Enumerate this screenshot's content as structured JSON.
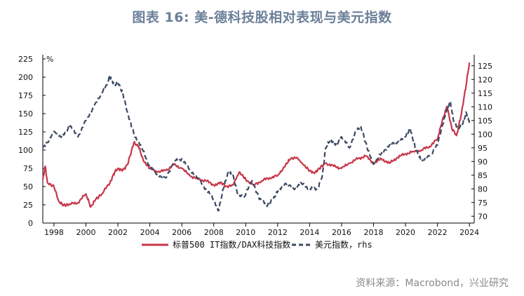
{
  "title": "图表 16: 美-德科技股相对表现与美元指数",
  "source": "资料来源：Macrobond，兴业研究",
  "chart_data": {
    "type": "line",
    "unit_label": "%",
    "x_range": [
      1997.3,
      2024.3
    ],
    "x_ticks": [
      "1998",
      "2000",
      "2002",
      "2004",
      "2006",
      "2008",
      "2010",
      "2012",
      "2014",
      "2016",
      "2018",
      "2020",
      "2022",
      "2024"
    ],
    "y_left": {
      "ticks": [
        "225",
        "200",
        "175",
        "150",
        "125",
        "100",
        "75",
        "50",
        "25",
        "0"
      ],
      "range": [
        0,
        225
      ]
    },
    "y_right": {
      "ticks": [
        "125",
        "120",
        "115",
        "110",
        "105",
        "100",
        "95",
        "90",
        "85",
        "80",
        "75",
        "70"
      ],
      "range": [
        67.5,
        127.5
      ]
    },
    "legend": {
      "position": "bottom-center"
    },
    "series": [
      {
        "name": "标普500 IT指数/DAX科技指数",
        "axis": "left",
        "color": "#c8374a",
        "style": "solid",
        "x": [
          1997.3,
          1997.45,
          1997.6,
          1998.0,
          1998.3,
          1998.6,
          1999.0,
          1999.5,
          2000.0,
          2000.3,
          2000.6,
          2001.0,
          2001.5,
          2001.8,
          2002.0,
          2002.3,
          2002.6,
          2003.0,
          2003.3,
          2003.6,
          2004.0,
          2004.5,
          2005.0,
          2005.5,
          2006.0,
          2006.5,
          2007.0,
          2007.5,
          2008.0,
          2008.5,
          2008.8,
          2009.2,
          2009.6,
          2010.0,
          2010.5,
          2011.0,
          2011.5,
          2012.0,
          2012.5,
          2012.8,
          2013.2,
          2013.6,
          2014.0,
          2014.3,
          2014.6,
          2015.0,
          2015.5,
          2016.0,
          2016.5,
          2017.0,
          2017.5,
          2018.0,
          2018.5,
          2019.0,
          2019.5,
          2020.0,
          2020.5,
          2021.0,
          2021.5,
          2022.0,
          2022.3,
          2022.6,
          2022.9,
          2023.2,
          2023.5,
          2023.8,
          2024.0
        ],
        "values": [
          60,
          78,
          55,
          50,
          30,
          24,
          26,
          28,
          40,
          22,
          32,
          40,
          55,
          70,
          75,
          72,
          80,
          110,
          105,
          85,
          75,
          70,
          72,
          80,
          75,
          65,
          60,
          58,
          52,
          55,
          50,
          52,
          70,
          60,
          52,
          58,
          62,
          65,
          80,
          88,
          90,
          80,
          72,
          68,
          75,
          82,
          78,
          75,
          82,
          88,
          92,
          82,
          88,
          82,
          90,
          95,
          98,
          100,
          105,
          115,
          140,
          160,
          130,
          120,
          150,
          190,
          220
        ]
      },
      {
        "name": "美元指数，rhs",
        "axis": "right",
        "color": "#3b4a63",
        "style": "dashed",
        "x": [
          1997.3,
          1997.6,
          1998.0,
          1998.4,
          1998.8,
          1999.0,
          1999.5,
          2000.0,
          2000.5,
          2001.0,
          2001.3,
          2001.5,
          2001.8,
          2002.0,
          2002.3,
          2002.6,
          2003.0,
          2003.5,
          2004.0,
          2004.5,
          2005.0,
          2005.5,
          2006.0,
          2006.5,
          2007.0,
          2007.5,
          2008.0,
          2008.3,
          2008.6,
          2008.9,
          2009.2,
          2009.5,
          2009.9,
          2010.4,
          2010.8,
          2011.3,
          2011.7,
          2012.0,
          2012.5,
          2013.0,
          2013.5,
          2014.0,
          2014.5,
          2014.8,
          2015.0,
          2015.3,
          2015.7,
          2016.0,
          2016.5,
          2016.9,
          2017.2,
          2017.6,
          2018.0,
          2018.5,
          2019.0,
          2019.5,
          2020.0,
          2020.3,
          2020.6,
          2021.0,
          2021.5,
          2022.0,
          2022.3,
          2022.6,
          2022.8,
          2023.0,
          2023.3,
          2023.6,
          2023.8,
          2024.0
        ],
        "values": [
          95,
          97,
          101,
          99,
          101,
          103,
          99,
          105,
          110,
          115,
          118,
          121,
          118,
          119,
          115,
          108,
          100,
          95,
          88,
          85,
          84,
          90,
          91,
          87,
          84,
          80,
          76,
          72,
          80,
          86,
          85,
          78,
          77,
          83,
          77,
          74,
          76,
          79,
          82,
          80,
          82,
          80,
          80,
          85,
          95,
          98,
          96,
          99,
          95,
          101,
          103,
          95,
          89,
          93,
          96,
          97,
          99,
          102,
          95,
          90,
          92,
          96,
          103,
          109,
          112,
          105,
          102,
          104,
          108,
          104
        ]
      }
    ]
  }
}
